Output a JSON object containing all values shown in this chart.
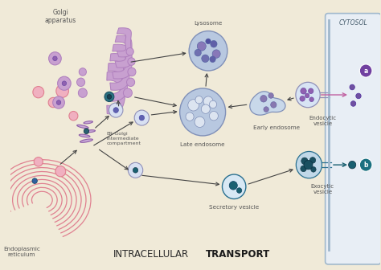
{
  "bg_color": "#f0ead8",
  "cytosol_panel_color": "#e8eef5",
  "cytosol_border_color": "#a0b8cc",
  "cytosol_label": "CYTOSOL",
  "labels": {
    "golgi": "Golgi\napparatus",
    "lysosome": "Lysosome",
    "late_endosome": "Late endosome",
    "early_endosome": "Early endosome",
    "er_golgi": "ER-Golgi\nintermediate\ncompartment",
    "er": "Endoplasmic\nreticulum",
    "secretory": "Secretory vesicle",
    "endocytic": "Endocytic\nvesicle",
    "exocytic": "Exocytic\nvesicle"
  },
  "colors": {
    "golgi_fill": "#c8a0d0",
    "golgi_stroke": "#b080be",
    "er_fill": "#f0b0c0",
    "er_stroke": "#e08090",
    "er_line": "#e08090",
    "lysosome_fill": "#b8c8e0",
    "lysosome_stroke": "#8090b8",
    "lysosome_dot": "#5060a0",
    "late_endosome_fill": "#b8c8e0",
    "late_endosome_stroke": "#8090b8",
    "late_inner_fill": "#dce4f0",
    "early_endosome_fill": "#c8d8ea",
    "early_endosome_stroke": "#8090b8",
    "early_dot": "#8878b0",
    "vesicle_fill": "#d8e0f2",
    "vesicle_stroke": "#9090b8",
    "secretory_fill": "#d8e8f4",
    "secretory_stroke": "#2a7090",
    "secretory_dot": "#1a6070",
    "endocytic_fill": "#d8e4f4",
    "endocytic_stroke": "#9090b8",
    "endocytic_dot": "#9060b0",
    "exocytic_fill": "#c0d8e8",
    "exocytic_stroke": "#2a7090",
    "exocytic_dot": "#1a5060",
    "er_golgi_fill": "#c8a8d8",
    "er_golgi_stroke": "#9060a8",
    "arrow_color": "#444444",
    "dot_purple": "#7050a0",
    "dot_teal": "#1a6070",
    "dot_pink": "#e07090",
    "small_vesicle_fill": "#d0d8f0",
    "small_vesicle_stroke": "#8090b0",
    "label_a_fill": "#7040a0",
    "label_b_fill": "#1a7080",
    "text_color": "#555555"
  }
}
